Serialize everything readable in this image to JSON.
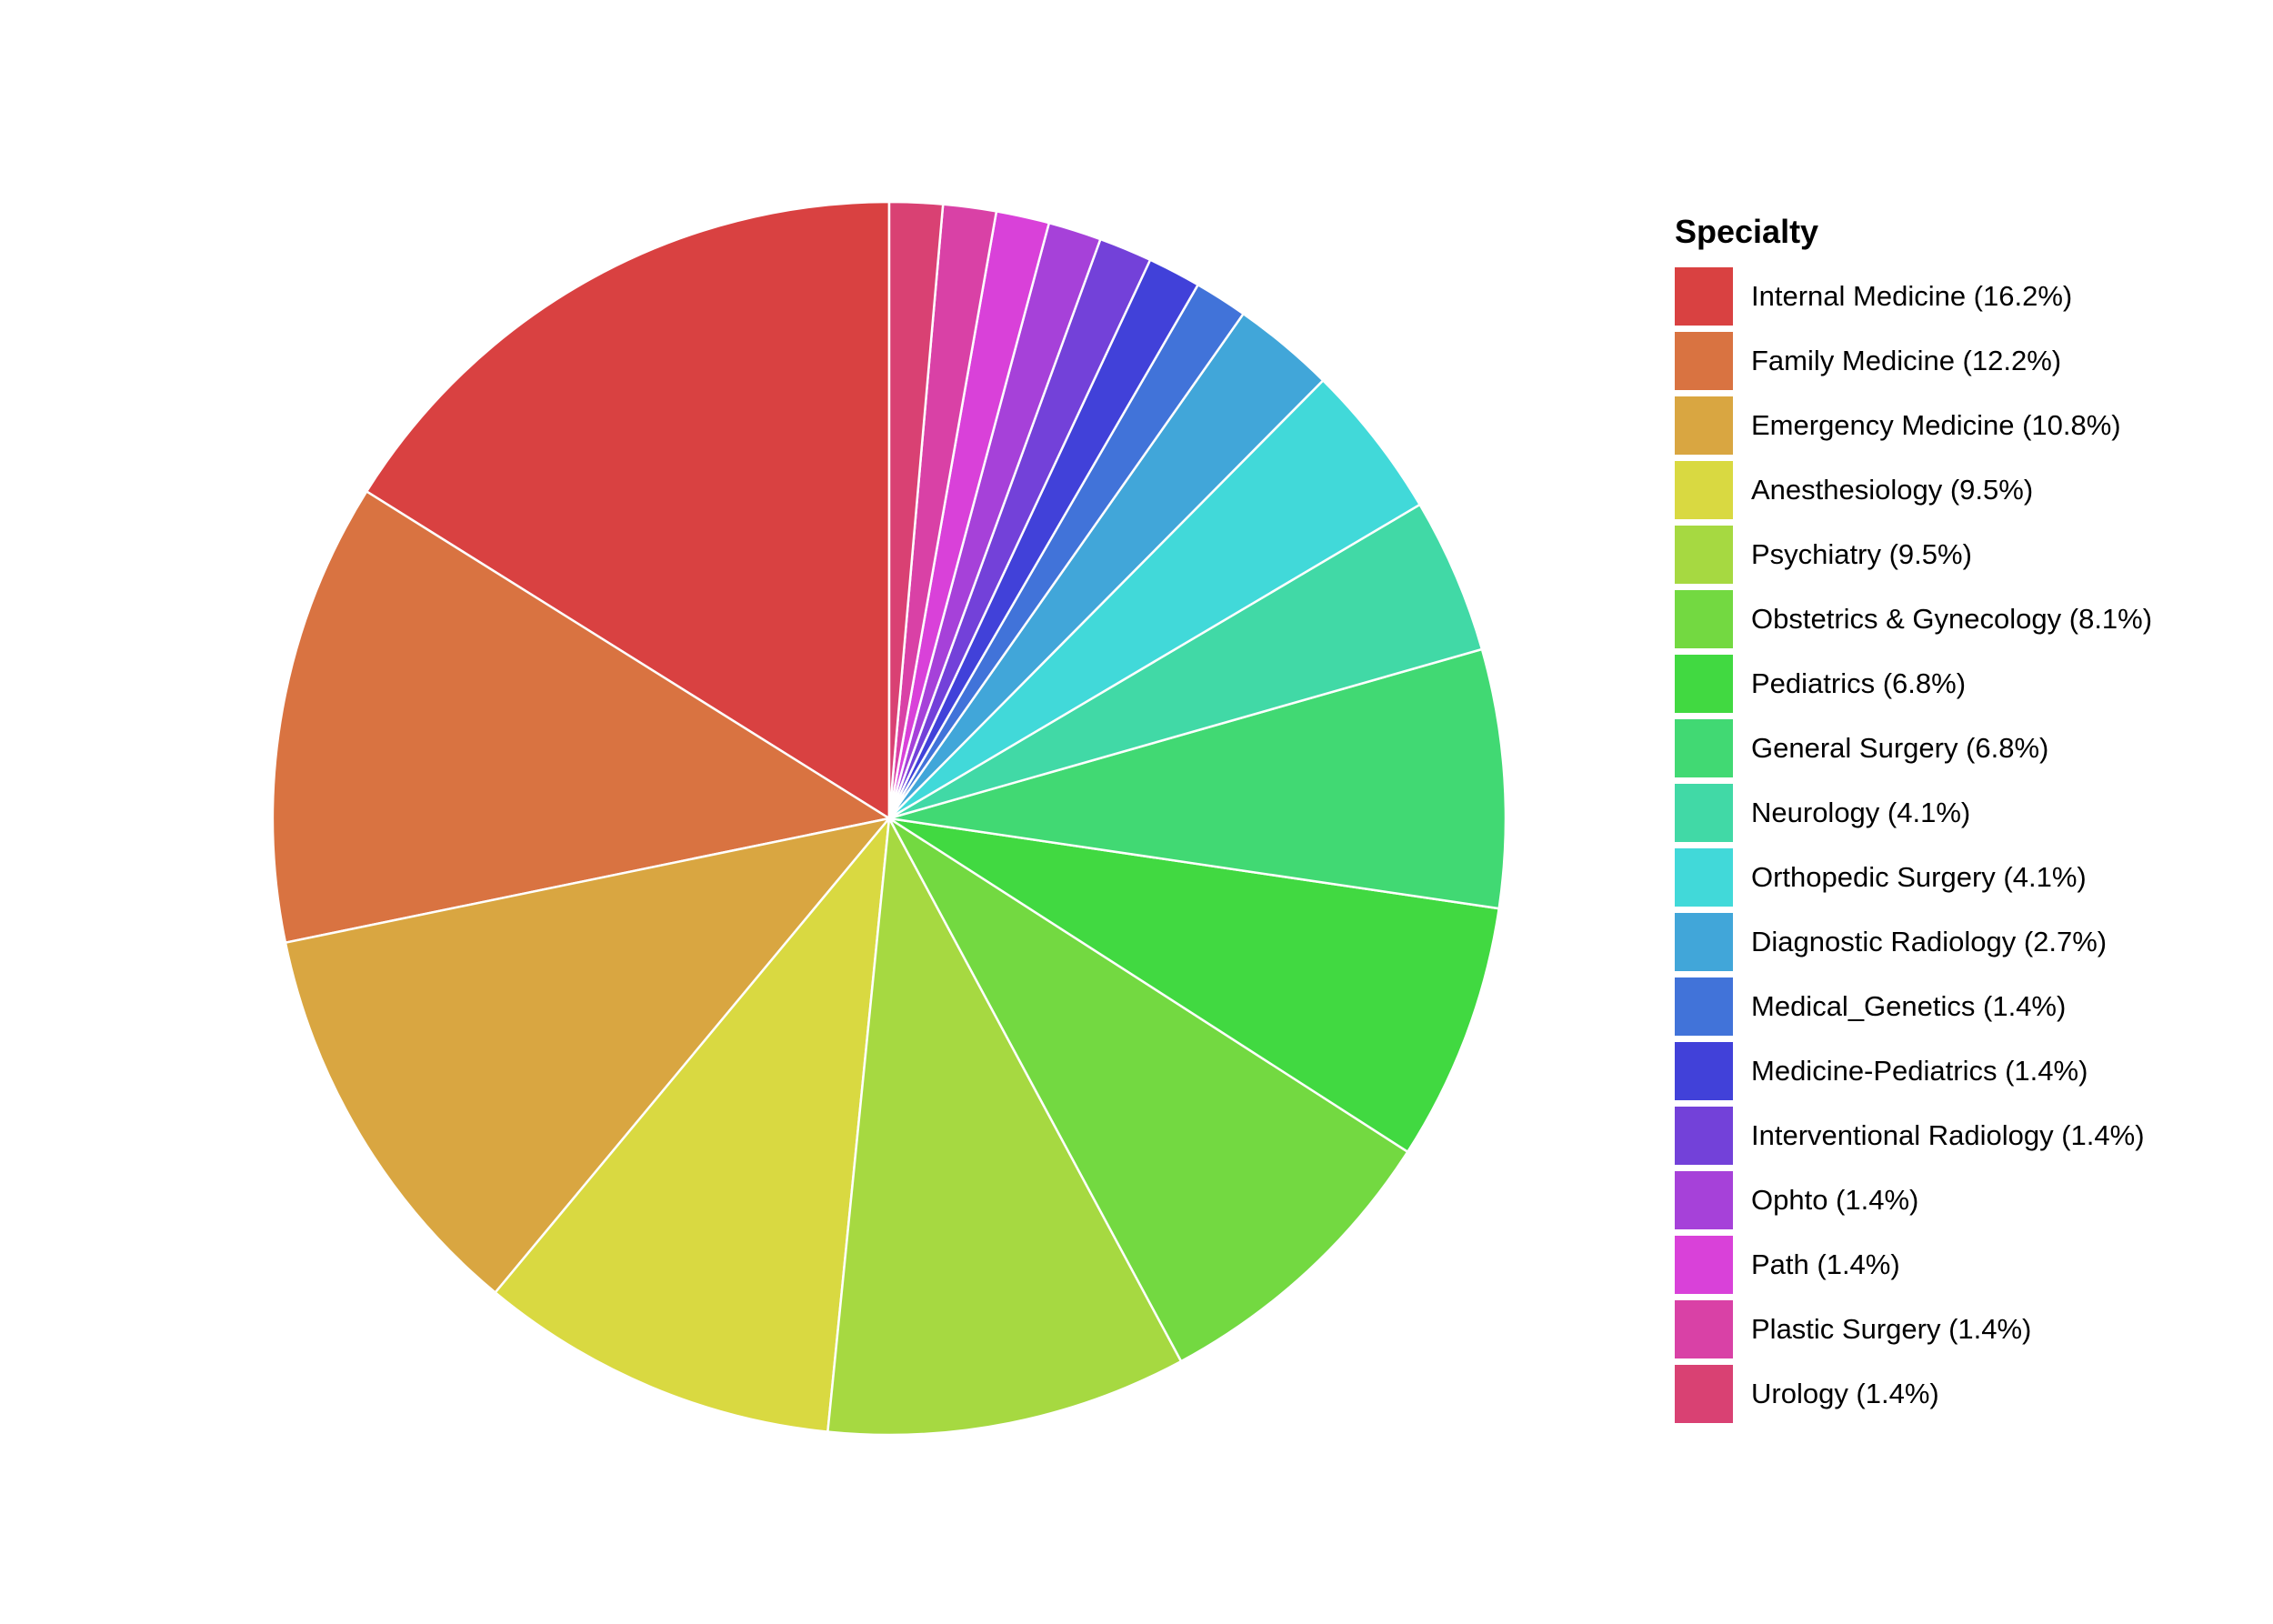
{
  "chart_data": {
    "type": "pie",
    "legend_title": "Specialty",
    "legend_position": "right",
    "slices": [
      {
        "label": "Internal Medicine (16.2%)",
        "value": 16.2,
        "color": "#d94141"
      },
      {
        "label": "Family Medicine (12.2%)",
        "value": 12.2,
        "color": "#d97341"
      },
      {
        "label": "Emergency Medicine (10.8%)",
        "value": 10.8,
        "color": "#d9a641"
      },
      {
        "label": "Anesthesiology (9.5%)",
        "value": 9.5,
        "color": "#d9d941"
      },
      {
        "label": "Psychiatry (9.5%)",
        "value": 9.5,
        "color": "#a6d941"
      },
      {
        "label": "Obstetrics & Gynecology (8.1%)",
        "value": 8.1,
        "color": "#73d941"
      },
      {
        "label": "Pediatrics (6.8%)",
        "value": 6.8,
        "color": "#41d941"
      },
      {
        "label": "General Surgery (6.8%)",
        "value": 6.8,
        "color": "#41d973"
      },
      {
        "label": "Neurology (4.1%)",
        "value": 4.1,
        "color": "#41d9a6"
      },
      {
        "label": "Orthopedic Surgery (4.1%)",
        "value": 4.1,
        "color": "#41d9d9"
      },
      {
        "label": "Diagnostic Radiology (2.7%)",
        "value": 2.7,
        "color": "#41a6d9"
      },
      {
        "label": "Medical_Genetics (1.4%)",
        "value": 1.4,
        "color": "#4173d9"
      },
      {
        "label": "Medicine-Pediatrics (1.4%)",
        "value": 1.4,
        "color": "#4141d9"
      },
      {
        "label": "Interventional Radiology (1.4%)",
        "value": 1.4,
        "color": "#7341d9"
      },
      {
        "label": "Ophto (1.4%)",
        "value": 1.4,
        "color": "#a641d9"
      },
      {
        "label": "Path (1.4%)",
        "value": 1.4,
        "color": "#d941d9"
      },
      {
        "label": "Plastic Surgery (1.4%)",
        "value": 1.4,
        "color": "#d941a6"
      },
      {
        "label": "Urology (1.4%)",
        "value": 1.4,
        "color": "#d94173"
      }
    ]
  }
}
